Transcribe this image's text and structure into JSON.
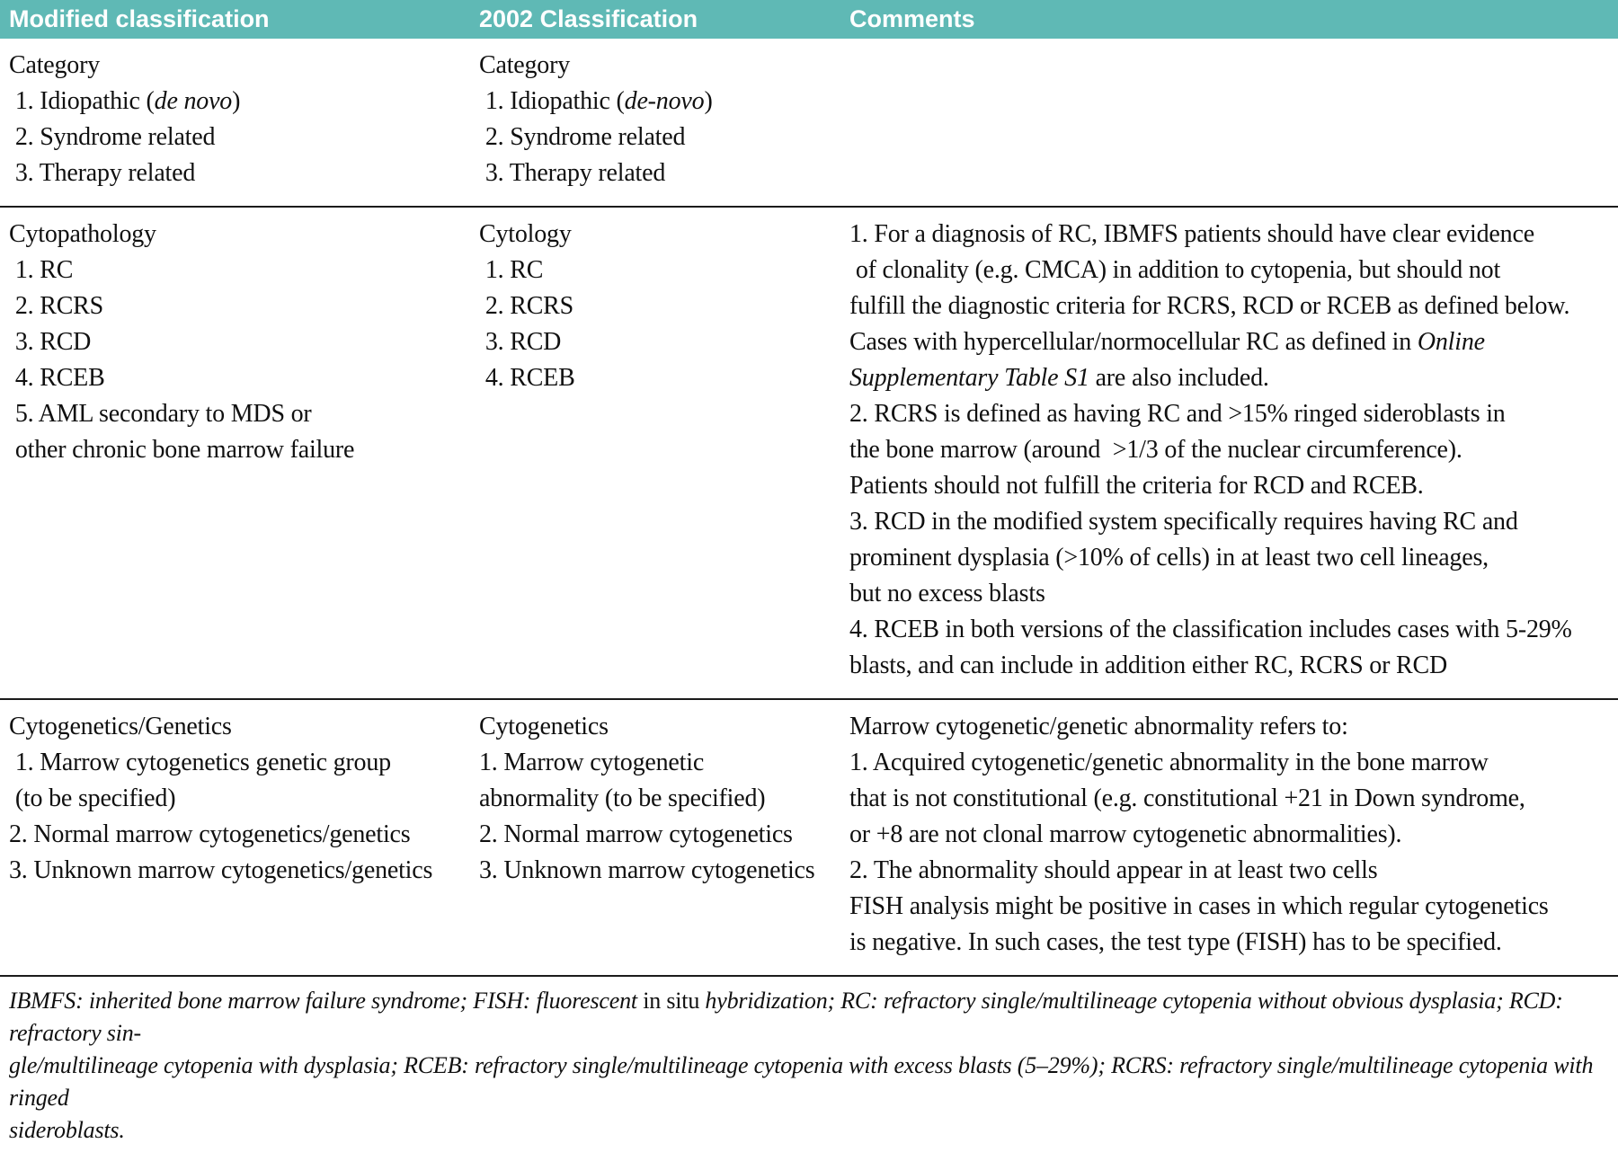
{
  "colors": {
    "header_bg": "#5fb9b5",
    "header_text": "#ffffff",
    "rule": "#1b1b1b",
    "body_text": "#101010"
  },
  "table": {
    "headers": [
      {
        "label": "Modified classification"
      },
      {
        "label": "2002 Classification"
      },
      {
        "label": "Comments"
      }
    ],
    "sections": {
      "category": {
        "modified": [
          "Category",
          [
            {
              "t": " 1. Idiopathic ("
            },
            {
              "t": "de novo",
              "i": true
            },
            {
              "t": ")"
            }
          ],
          " 2. Syndrome related",
          " 3. Therapy related"
        ],
        "c2002": [
          "Category",
          [
            {
              "t": " 1. Idiopathic ("
            },
            {
              "t": "de-novo",
              "i": true
            },
            {
              "t": ")"
            }
          ],
          " 2. Syndrome related",
          " 3. Therapy related"
        ],
        "comments": []
      },
      "cytopathology": {
        "modified": [
          "Cytopathology",
          " 1. RC",
          " 2. RCRS",
          " 3. RCD",
          " 4. RCEB",
          " 5. AML secondary to MDS or",
          " other chronic bone marrow failure"
        ],
        "c2002": [
          "Cytology",
          " 1. RC",
          " 2. RCRS",
          " 3. RCD",
          " 4. RCEB"
        ],
        "comments": [
          "1. For a diagnosis of RC, IBMFS patients should have clear evidence",
          " of clonality (e.g. CMCA) in addition to cytopenia, but should not",
          "fulfill the diagnostic criteria for RCRS, RCD or RCEB as defined below.",
          [
            {
              "t": "Cases with hypercellular/normocellular RC as defined in "
            },
            {
              "t": "Online",
              "i": true
            }
          ],
          [
            {
              "t": "Supplementary Table S1",
              "i": true
            },
            {
              "t": " are also included."
            }
          ],
          "2. RCRS is defined as having RC and >15% ringed sideroblasts in",
          "the bone marrow (around  >1/3 of the nuclear circumference).",
          "Patients should not fulfill the criteria for RCD and RCEB.",
          "3. RCD in the modified system specifically requires having RC and",
          "prominent dysplasia (>10% of cells) in at least two cell lineages,",
          "but no excess blasts",
          "4. RCEB in both versions of the classification includes cases with 5-29%",
          "blasts, and can include in addition either RC, RCRS or RCD"
        ]
      },
      "cytogenetics": {
        "modified": [
          "Cytogenetics/Genetics",
          " 1. Marrow cytogenetics genetic group",
          " (to be specified)",
          "2. Normal marrow cytogenetics/genetics",
          "3. Unknown marrow cytogenetics/genetics"
        ],
        "c2002": [
          "Cytogenetics",
          "1. Marrow cytogenetic",
          "abnormality (to be specified)",
          "2. Normal marrow cytogenetics",
          "3. Unknown marrow cytogenetics"
        ],
        "comments": [
          "Marrow cytogenetic/genetic abnormality refers to:",
          "1. Acquired cytogenetic/genetic abnormality in the bone marrow",
          "that is not constitutional (e.g. constitutional +21 in Down syndrome,",
          "or +8 are not clonal marrow cytogenetic abnormalities).",
          "2. The abnormality should appear in at least two cells",
          "FISH analysis might be positive in cases in which regular cytogenetics",
          "is negative. In such cases, the test type (FISH) has to be specified."
        ]
      }
    },
    "footnote": [
      [
        {
          "t": "IBMFS: inherited bone marrow failure syndrome; FISH: fluorescent ",
          "i": true
        },
        {
          "t": "in situ"
        },
        {
          "t": " hybridization; RC: refractory single/multilineage cytopenia without obvious dysplasia; RCD: refractory sin-",
          "i": true
        }
      ],
      [
        {
          "t": "gle/multilineage cytopenia with dysplasia; RCEB: refractory single/multilineage cytopenia with excess blasts (5–29%); RCRS: refractory single/multilineage cytopenia with ringed",
          "i": true
        }
      ],
      [
        {
          "t": "sideroblasts.",
          "i": true
        }
      ]
    ]
  }
}
